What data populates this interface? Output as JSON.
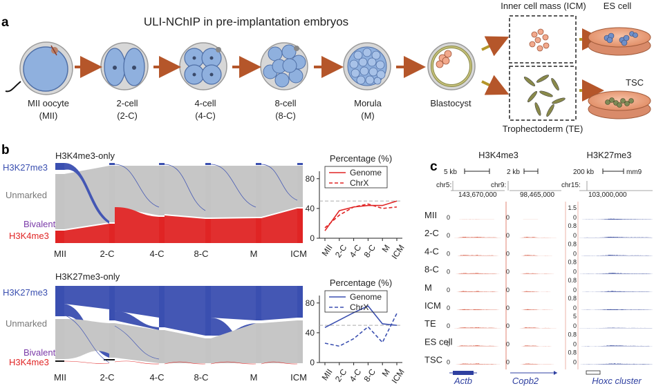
{
  "panel_a": {
    "letter": "a",
    "title": "ULI-NChIP in pre-implantation embryos",
    "stages": [
      {
        "name": "MII oocyte",
        "abbr": "(MII)"
      },
      {
        "name": "2-cell",
        "abbr": "(2-C)"
      },
      {
        "name": "4-cell",
        "abbr": "(4-C)"
      },
      {
        "name": "8-cell",
        "abbr": "(8-C)"
      },
      {
        "name": "Morula",
        "abbr": "(M)"
      },
      {
        "name": "Blastocyst",
        "abbr": ""
      }
    ],
    "icm_label": "Inner cell mass (ICM)",
    "te_label": "Trophectoderm (TE)",
    "es_label": "ES cell",
    "tsc_label": "TSC"
  },
  "panel_b": {
    "letter": "b",
    "state_labels": {
      "h3k27me3": "H3K27me3",
      "unmarked": "Unmarked",
      "bivalent": "Bivalent",
      "h3k4me3": "H3K4me3"
    },
    "stage_axis": [
      "MII",
      "2-C",
      "4-C",
      "8-C",
      "M",
      "ICM"
    ],
    "colors": {
      "h3k27me3": "#3a4fb0",
      "unmarked": "#c4c4c4",
      "bivalent": "#7a3aa8",
      "h3k4me3": "#e02424"
    },
    "top": {
      "title": "H3K4me3-only"
    },
    "bottom": {
      "title": "H3K27me3-only"
    }
  },
  "chart_data": [
    {
      "type": "line",
      "title": "Percentage (%)",
      "categories": [
        "MII",
        "2-C",
        "4-C",
        "8-C",
        "M",
        "ICM"
      ],
      "ylim": [
        0,
        90
      ],
      "yticks": [
        0,
        40,
        80
      ],
      "reference_line": 50,
      "series": [
        {
          "name": "Genome",
          "style": "solid",
          "color": "#e02424",
          "values": [
            10,
            37,
            42,
            44,
            44,
            50
          ]
        },
        {
          "name": "ChrX",
          "style": "dashed",
          "color": "#e02424",
          "values": [
            14,
            31,
            42,
            46,
            40,
            42
          ]
        }
      ]
    },
    {
      "type": "line",
      "title": "Percentage (%)",
      "categories": [
        "MII",
        "2-C",
        "4-C",
        "8-C",
        "M",
        "ICM"
      ],
      "ylim": [
        0,
        90
      ],
      "yticks": [
        0,
        40,
        80
      ],
      "reference_line": 50,
      "series": [
        {
          "name": "Genome",
          "style": "solid",
          "color": "#3a4fb0",
          "values": [
            47,
            57,
            67,
            76,
            52,
            50
          ]
        },
        {
          "name": "ChrX",
          "style": "dashed",
          "color": "#3a4fb0",
          "values": [
            26,
            22,
            32,
            48,
            27,
            66
          ]
        }
      ]
    }
  ],
  "panel_c": {
    "letter": "c",
    "h3k4me3_title": "H3K4me3",
    "h3k27me3_title": "H3K27me3",
    "scale_bars": [
      "5 kb",
      "2 kb",
      "200 kb",
      "mm9"
    ],
    "chromosomes": [
      "chr5:",
      "chr9:",
      "chr15:"
    ],
    "positions": [
      "143,670,000",
      "98,465,000",
      "103,000,000"
    ],
    "rows": [
      "MII",
      "2-C",
      "4-C",
      "8-C",
      "M",
      "ICM",
      "TE",
      "ES cell",
      "TSC"
    ],
    "k27_ymax": [
      "1.5",
      "0.8",
      "0.8",
      "0.8",
      "0.8",
      "0.8",
      "5",
      "0.8",
      "0.8"
    ],
    "zero": "0",
    "genes": [
      "Actb",
      "Copb2",
      "Hoxc cluster"
    ],
    "colors": {
      "k4": "#d9644f",
      "k27": "#3d4f9e"
    }
  }
}
